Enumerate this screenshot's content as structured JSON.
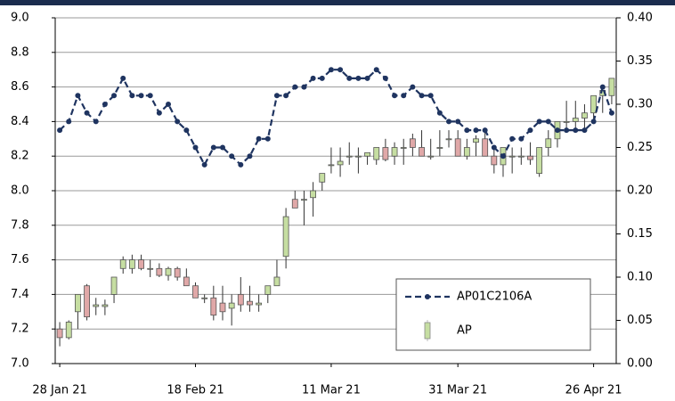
{
  "chart_data": {
    "type": "candlestick",
    "categories": [
      "28 Jan 21",
      null,
      null,
      null,
      null,
      null,
      null,
      null,
      null,
      null,
      null,
      null,
      null,
      null,
      null,
      "18 Feb 21",
      null,
      null,
      null,
      null,
      null,
      null,
      null,
      null,
      null,
      null,
      null,
      null,
      null,
      null,
      "11 Mar 21",
      null,
      null,
      null,
      null,
      null,
      null,
      null,
      null,
      null,
      null,
      null,
      null,
      null,
      "31 Mar 21",
      null,
      null,
      null,
      null,
      null,
      null,
      null,
      null,
      null,
      null,
      null,
      null,
      null,
      null,
      "26 Apr 21",
      null,
      null
    ],
    "ylim": [
      7.0,
      9.0
    ],
    "yticks": [
      {
        "value": 7.0,
        "label": "7.0"
      },
      7.2,
      7.4,
      7.6,
      7.8,
      {
        "value": 8.0,
        "label": "8.0"
      },
      8.2,
      8.4,
      8.6,
      8.8,
      {
        "value": 9.0,
        "label": "9.0"
      }
    ],
    "y2lim": [
      0,
      0.4
    ],
    "y2ticks": [
      {
        "value": 0,
        "label": "0.00"
      },
      0.05,
      {
        "value": 0.1,
        "label": "0.10"
      },
      0.15,
      {
        "value": 0.2,
        "label": "0.20"
      },
      0.25,
      {
        "value": 0.3,
        "label": "0.30"
      },
      0.35,
      {
        "value": 0.4,
        "label": "0.40"
      }
    ],
    "grid": true,
    "legend": "lower right",
    "series": [
      {
        "name": "AP01C2106A",
        "type": "line",
        "axis": "y2",
        "color": "#1f3460",
        "values": [
          0.27,
          0.28,
          0.31,
          0.29,
          0.28,
          0.3,
          0.31,
          0.33,
          0.31,
          0.31,
          0.31,
          0.29,
          0.3,
          0.28,
          0.27,
          0.25,
          0.23,
          0.25,
          0.25,
          0.24,
          0.23,
          0.24,
          0.26,
          0.26,
          0.31,
          0.31,
          0.32,
          0.32,
          0.33,
          0.33,
          0.34,
          0.34,
          0.33,
          0.33,
          0.33,
          0.34,
          0.33,
          0.31,
          0.31,
          0.32,
          0.31,
          0.31,
          0.29,
          0.28,
          0.28,
          0.27,
          0.27,
          0.27,
          0.25,
          0.24,
          0.26,
          0.26,
          0.27,
          0.28,
          0.28,
          0.27,
          0.27,
          0.27,
          0.27,
          0.28,
          0.32,
          0.29
        ]
      },
      {
        "name": "AP",
        "type": "candlestick",
        "up_color": "#c6dea2",
        "down_color": "#e0a8a8",
        "open": [
          7.2,
          7.15,
          7.3,
          7.45,
          7.33,
          7.33,
          7.4,
          7.55,
          7.55,
          7.6,
          7.55,
          7.55,
          7.51,
          7.55,
          7.5,
          7.45,
          7.38,
          7.38,
          7.35,
          7.32,
          7.4,
          7.36,
          7.34,
          7.4,
          7.45,
          7.62,
          7.95,
          7.95,
          7.96,
          8.05,
          8.15,
          8.15,
          8.2,
          8.2,
          8.2,
          8.18,
          8.25,
          8.2,
          8.25,
          8.3,
          8.25,
          8.2,
          8.25,
          8.3,
          8.3,
          8.2,
          8.28,
          8.3,
          8.2,
          8.15,
          8.2,
          8.2,
          8.2,
          8.1,
          8.25,
          8.3,
          8.4,
          8.4,
          8.42,
          8.45,
          8.55,
          8.55
        ],
        "high": [
          7.24,
          7.25,
          7.4,
          7.46,
          7.38,
          7.37,
          7.5,
          7.62,
          7.63,
          7.63,
          7.6,
          7.58,
          7.56,
          7.56,
          7.55,
          7.47,
          7.4,
          7.45,
          7.45,
          7.4,
          7.5,
          7.45,
          7.4,
          7.45,
          7.6,
          7.9,
          8.0,
          8.0,
          8.05,
          8.1,
          8.25,
          8.25,
          8.28,
          8.25,
          8.22,
          8.25,
          8.3,
          8.28,
          8.3,
          8.33,
          8.35,
          8.3,
          8.35,
          8.35,
          8.35,
          8.3,
          8.32,
          8.35,
          8.25,
          8.25,
          8.25,
          8.25,
          8.28,
          8.25,
          8.35,
          8.4,
          8.52,
          8.52,
          8.5,
          8.55,
          8.6,
          8.65
        ],
        "low": [
          7.1,
          7.14,
          7.2,
          7.25,
          7.28,
          7.28,
          7.35,
          7.52,
          7.52,
          7.54,
          7.5,
          7.5,
          7.48,
          7.48,
          7.45,
          7.38,
          7.35,
          7.25,
          7.25,
          7.22,
          7.3,
          7.3,
          7.3,
          7.35,
          7.45,
          7.55,
          7.9,
          7.8,
          7.85,
          8.0,
          8.1,
          8.08,
          8.15,
          8.1,
          8.15,
          8.15,
          8.17,
          8.15,
          8.15,
          8.2,
          8.2,
          8.18,
          8.2,
          8.25,
          8.2,
          8.18,
          8.2,
          8.2,
          8.1,
          8.08,
          8.1,
          8.15,
          8.15,
          8.08,
          8.2,
          8.25,
          8.35,
          8.35,
          8.35,
          8.4,
          8.45,
          8.5
        ],
        "close": [
          7.15,
          7.24,
          7.4,
          7.27,
          7.34,
          7.34,
          7.5,
          7.6,
          7.6,
          7.55,
          7.55,
          7.51,
          7.55,
          7.5,
          7.45,
          7.38,
          7.38,
          7.28,
          7.3,
          7.35,
          7.34,
          7.34,
          7.35,
          7.45,
          7.5,
          7.85,
          7.9,
          7.95,
          8.0,
          8.1,
          8.15,
          8.17,
          8.2,
          8.2,
          8.22,
          8.25,
          8.18,
          8.25,
          8.25,
          8.25,
          8.2,
          8.2,
          8.25,
          8.3,
          8.2,
          8.25,
          8.3,
          8.2,
          8.15,
          8.25,
          8.2,
          8.2,
          8.18,
          8.25,
          8.3,
          8.4,
          8.4,
          8.42,
          8.45,
          8.55,
          8.58,
          8.65
        ]
      }
    ]
  }
}
